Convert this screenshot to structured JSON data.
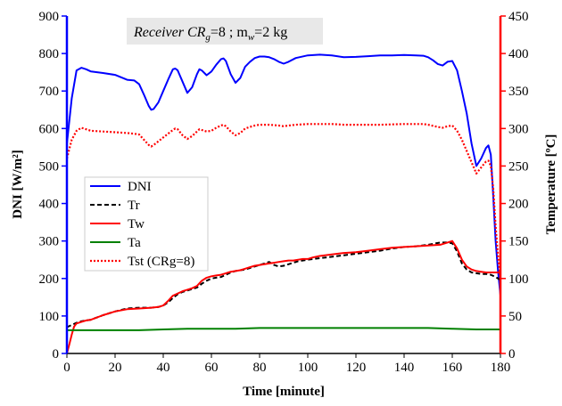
{
  "chart_data": {
    "type": "line",
    "annotation": {
      "prefix": "Receiver CR",
      "prefix_sub": "g",
      "middle": "=8 ; m",
      "middle_sub": "w",
      "suffix": "=2 kg"
    },
    "xlabel": "Time [minute]",
    "ylabel_left": "DNI [W/m²]",
    "ylabel_right": "Temperature  [ºC]",
    "xlim": [
      0,
      180
    ],
    "ylim_left": [
      0,
      900
    ],
    "ylim_right": [
      0,
      450
    ],
    "x_ticks": [
      0,
      20,
      40,
      60,
      80,
      100,
      120,
      140,
      160,
      180
    ],
    "y_left_ticks": [
      0,
      100,
      200,
      300,
      400,
      500,
      600,
      700,
      800,
      900
    ],
    "y_right_ticks": [
      0,
      50,
      100,
      150,
      200,
      250,
      300,
      350,
      400,
      450
    ],
    "legend_position": "center-left",
    "series": [
      {
        "name": "DNI",
        "axis": "left",
        "color": "#0000ff",
        "dash": "solid",
        "points": [
          [
            0,
            560
          ],
          [
            2,
            680
          ],
          [
            4,
            755
          ],
          [
            6,
            762
          ],
          [
            8,
            758
          ],
          [
            10,
            752
          ],
          [
            15,
            748
          ],
          [
            20,
            743
          ],
          [
            25,
            730
          ],
          [
            28,
            728
          ],
          [
            30,
            718
          ],
          [
            32,
            690
          ],
          [
            34,
            660
          ],
          [
            35,
            650
          ],
          [
            36,
            652
          ],
          [
            38,
            670
          ],
          [
            40,
            700
          ],
          [
            42,
            730
          ],
          [
            44,
            758
          ],
          [
            45,
            760
          ],
          [
            46,
            755
          ],
          [
            48,
            725
          ],
          [
            50,
            695
          ],
          [
            52,
            710
          ],
          [
            54,
            745
          ],
          [
            55,
            758
          ],
          [
            56,
            755
          ],
          [
            58,
            742
          ],
          [
            60,
            752
          ],
          [
            62,
            770
          ],
          [
            64,
            785
          ],
          [
            65,
            787
          ],
          [
            66,
            780
          ],
          [
            68,
            745
          ],
          [
            70,
            722
          ],
          [
            72,
            735
          ],
          [
            74,
            765
          ],
          [
            76,
            778
          ],
          [
            78,
            788
          ],
          [
            80,
            792
          ],
          [
            82,
            792
          ],
          [
            84,
            790
          ],
          [
            86,
            785
          ],
          [
            88,
            778
          ],
          [
            90,
            773
          ],
          [
            92,
            778
          ],
          [
            95,
            788
          ],
          [
            100,
            795
          ],
          [
            105,
            797
          ],
          [
            110,
            795
          ],
          [
            115,
            790
          ],
          [
            120,
            791
          ],
          [
            125,
            793
          ],
          [
            130,
            795
          ],
          [
            135,
            795
          ],
          [
            140,
            796
          ],
          [
            145,
            795
          ],
          [
            148,
            794
          ],
          [
            150,
            790
          ],
          [
            152,
            782
          ],
          [
            154,
            772
          ],
          [
            156,
            768
          ],
          [
            158,
            778
          ],
          [
            160,
            780
          ],
          [
            162,
            755
          ],
          [
            164,
            700
          ],
          [
            166,
            640
          ],
          [
            168,
            560
          ],
          [
            170,
            500
          ],
          [
            172,
            520
          ],
          [
            174,
            548
          ],
          [
            175,
            555
          ],
          [
            176,
            530
          ],
          [
            177,
            420
          ],
          [
            178,
            300
          ],
          [
            179,
            220
          ],
          [
            180,
            155
          ]
        ]
      },
      {
        "name": "Tr",
        "axis": "right",
        "color": "#000000",
        "dash": "dashed",
        "points": [
          [
            0,
            35
          ],
          [
            2,
            38
          ],
          [
            4,
            41
          ],
          [
            6,
            43
          ],
          [
            8,
            44
          ],
          [
            10,
            45
          ],
          [
            15,
            51
          ],
          [
            20,
            56
          ],
          [
            25,
            60
          ],
          [
            30,
            61
          ],
          [
            35,
            61
          ],
          [
            38,
            62
          ],
          [
            40,
            64
          ],
          [
            42,
            68
          ],
          [
            44,
            74
          ],
          [
            46,
            79
          ],
          [
            48,
            82
          ],
          [
            50,
            84
          ],
          [
            52,
            86
          ],
          [
            54,
            88
          ],
          [
            56,
            93
          ],
          [
            58,
            97
          ],
          [
            60,
            100
          ],
          [
            62,
            101
          ],
          [
            64,
            102
          ],
          [
            66,
            105
          ],
          [
            68,
            108
          ],
          [
            70,
            110
          ],
          [
            72,
            111
          ],
          [
            74,
            112
          ],
          [
            76,
            114
          ],
          [
            78,
            116
          ],
          [
            80,
            118
          ],
          [
            82,
            120
          ],
          [
            84,
            122
          ],
          [
            86,
            118
          ],
          [
            88,
            116
          ],
          [
            90,
            117
          ],
          [
            92,
            119
          ],
          [
            94,
            121
          ],
          [
            96,
            123
          ],
          [
            100,
            125
          ],
          [
            105,
            127
          ],
          [
            110,
            129
          ],
          [
            115,
            131
          ],
          [
            120,
            133
          ],
          [
            125,
            135
          ],
          [
            130,
            137
          ],
          [
            135,
            140
          ],
          [
            140,
            142
          ],
          [
            145,
            143
          ],
          [
            150,
            145
          ],
          [
            155,
            148
          ],
          [
            158,
            148
          ],
          [
            160,
            147
          ],
          [
            162,
            136
          ],
          [
            164,
            120
          ],
          [
            166,
            112
          ],
          [
            168,
            108
          ],
          [
            170,
            107
          ],
          [
            172,
            106
          ],
          [
            174,
            106
          ],
          [
            176,
            105
          ],
          [
            178,
            102
          ],
          [
            180,
            98
          ]
        ]
      },
      {
        "name": "Tw",
        "axis": "right",
        "color": "#ff0000",
        "dash": "solid",
        "points": [
          [
            0,
            0
          ],
          [
            1,
            12
          ],
          [
            2,
            25
          ],
          [
            3,
            36
          ],
          [
            4,
            40
          ],
          [
            6,
            42
          ],
          [
            8,
            44
          ],
          [
            10,
            45
          ],
          [
            15,
            51
          ],
          [
            20,
            56
          ],
          [
            25,
            59
          ],
          [
            30,
            60
          ],
          [
            35,
            61
          ],
          [
            38,
            62
          ],
          [
            40,
            64
          ],
          [
            42,
            70
          ],
          [
            44,
            77
          ],
          [
            46,
            80
          ],
          [
            48,
            83
          ],
          [
            50,
            85
          ],
          [
            52,
            87
          ],
          [
            54,
            90
          ],
          [
            56,
            97
          ],
          [
            58,
            101
          ],
          [
            60,
            103
          ],
          [
            62,
            104
          ],
          [
            64,
            105
          ],
          [
            66,
            107
          ],
          [
            68,
            109
          ],
          [
            70,
            110
          ],
          [
            72,
            111
          ],
          [
            74,
            113
          ],
          [
            76,
            115
          ],
          [
            78,
            117
          ],
          [
            80,
            118
          ],
          [
            82,
            119
          ],
          [
            84,
            120
          ],
          [
            86,
            121
          ],
          [
            88,
            122
          ],
          [
            90,
            123
          ],
          [
            92,
            124
          ],
          [
            94,
            124
          ],
          [
            96,
            125
          ],
          [
            98,
            126
          ],
          [
            100,
            126
          ],
          [
            102,
            128
          ],
          [
            105,
            130
          ],
          [
            110,
            132
          ],
          [
            115,
            134
          ],
          [
            120,
            135
          ],
          [
            125,
            137
          ],
          [
            130,
            139
          ],
          [
            135,
            141
          ],
          [
            140,
            142
          ],
          [
            145,
            143
          ],
          [
            150,
            144
          ],
          [
            155,
            145
          ],
          [
            158,
            148
          ],
          [
            160,
            150
          ],
          [
            162,
            140
          ],
          [
            164,
            125
          ],
          [
            166,
            116
          ],
          [
            168,
            112
          ],
          [
            170,
            110
          ],
          [
            172,
            109
          ],
          [
            174,
            108
          ],
          [
            176,
            108
          ],
          [
            178,
            108
          ],
          [
            180,
            108
          ]
        ]
      },
      {
        "name": "Ta",
        "axis": "right",
        "color": "#008000",
        "dash": "solid",
        "points": [
          [
            0,
            31
          ],
          [
            10,
            31
          ],
          [
            20,
            31
          ],
          [
            30,
            31
          ],
          [
            40,
            32
          ],
          [
            50,
            33
          ],
          [
            60,
            33
          ],
          [
            70,
            33
          ],
          [
            80,
            34
          ],
          [
            90,
            34
          ],
          [
            100,
            34
          ],
          [
            110,
            34
          ],
          [
            120,
            34
          ],
          [
            130,
            34
          ],
          [
            140,
            34
          ],
          [
            150,
            34
          ],
          [
            160,
            33
          ],
          [
            170,
            32
          ],
          [
            180,
            32
          ]
        ]
      },
      {
        "name": "Tst (CRg=8)",
        "axis": "right",
        "color": "#ff0000",
        "dash": "dotted",
        "points": [
          [
            0,
            260
          ],
          [
            2,
            285
          ],
          [
            4,
            297
          ],
          [
            6,
            301
          ],
          [
            8,
            299
          ],
          [
            10,
            297
          ],
          [
            15,
            296
          ],
          [
            20,
            295
          ],
          [
            25,
            294
          ],
          [
            28,
            293
          ],
          [
            30,
            292
          ],
          [
            32,
            285
          ],
          [
            34,
            278
          ],
          [
            35,
            276
          ],
          [
            36,
            278
          ],
          [
            38,
            283
          ],
          [
            40,
            288
          ],
          [
            42,
            293
          ],
          [
            44,
            298
          ],
          [
            45,
            300
          ],
          [
            46,
            299
          ],
          [
            48,
            291
          ],
          [
            50,
            286
          ],
          [
            52,
            290
          ],
          [
            54,
            296
          ],
          [
            55,
            299
          ],
          [
            56,
            298
          ],
          [
            58,
            296
          ],
          [
            60,
            297
          ],
          [
            62,
            301
          ],
          [
            64,
            304
          ],
          [
            65,
            305
          ],
          [
            66,
            303
          ],
          [
            68,
            296
          ],
          [
            70,
            291
          ],
          [
            72,
            294
          ],
          [
            74,
            300
          ],
          [
            76,
            302
          ],
          [
            78,
            304
          ],
          [
            80,
            305
          ],
          [
            84,
            305
          ],
          [
            88,
            304
          ],
          [
            90,
            303
          ],
          [
            92,
            304
          ],
          [
            95,
            305
          ],
          [
            100,
            306
          ],
          [
            105,
            306
          ],
          [
            110,
            306
          ],
          [
            115,
            305
          ],
          [
            120,
            305
          ],
          [
            130,
            305
          ],
          [
            140,
            306
          ],
          [
            148,
            306
          ],
          [
            150,
            305
          ],
          [
            154,
            302
          ],
          [
            156,
            301
          ],
          [
            158,
            303
          ],
          [
            160,
            304
          ],
          [
            162,
            297
          ],
          [
            164,
            285
          ],
          [
            166,
            270
          ],
          [
            168,
            255
          ],
          [
            170,
            240
          ],
          [
            172,
            248
          ],
          [
            174,
            256
          ],
          [
            175,
            257
          ],
          [
            176,
            250
          ],
          [
            177,
            220
          ],
          [
            178,
            170
          ],
          [
            179,
            130
          ],
          [
            180,
            100
          ]
        ]
      }
    ]
  }
}
